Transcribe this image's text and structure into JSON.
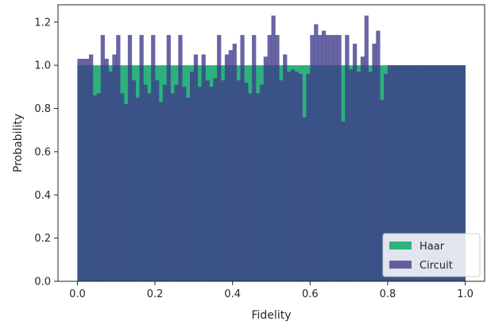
{
  "chart_data": {
    "type": "bar",
    "title": "",
    "xlabel": "Fidelity",
    "ylabel": "Probability",
    "xlim": [
      -0.05,
      1.05
    ],
    "ylim": [
      0,
      1.28
    ],
    "xticks": [
      0.0,
      0.2,
      0.4,
      0.6,
      0.8,
      1.0
    ],
    "xtick_labels": [
      "0.0",
      "0.2",
      "0.4",
      "0.6",
      "0.8",
      "1.0"
    ],
    "yticks": [
      0.0,
      0.2,
      0.4,
      0.6,
      0.8,
      1.0,
      1.2
    ],
    "ytick_labels": [
      "0.0",
      "0.2",
      "0.4",
      "0.6",
      "0.8",
      "1.0",
      "1.2"
    ],
    "bins": 100,
    "bin_range": [
      0,
      1
    ],
    "legend_position": "lower-right",
    "series": [
      {
        "name": "Haar",
        "color": "#2db27d",
        "alpha": 1.0,
        "values": [
          1.0,
          1.0,
          1.0,
          1.0,
          1.0,
          1.0,
          1.0,
          1.0,
          1.0,
          1.0,
          1.0,
          1.0,
          1.0,
          1.0,
          1.0,
          1.0,
          1.0,
          1.0,
          1.0,
          1.0,
          1.0,
          1.0,
          1.0,
          1.0,
          1.0,
          1.0,
          1.0,
          1.0,
          1.0,
          1.0,
          1.0,
          1.0,
          1.0,
          1.0,
          1.0,
          1.0,
          1.0,
          1.0,
          1.0,
          1.0,
          1.0,
          1.0,
          1.0,
          1.0,
          1.0,
          1.0,
          1.0,
          1.0,
          1.0,
          1.0,
          1.0,
          1.0,
          1.0,
          1.0,
          1.0,
          1.0,
          1.0,
          1.0,
          1.0,
          1.0,
          1.0,
          1.0,
          1.0,
          1.0,
          1.0,
          1.0,
          1.0,
          1.0,
          1.0,
          1.0,
          1.0,
          1.0,
          1.0,
          1.0,
          1.0,
          1.0,
          1.0,
          1.0,
          1.0,
          1.0,
          1.0,
          1.0,
          1.0,
          1.0,
          1.0,
          1.0,
          1.0,
          1.0,
          1.0,
          1.0,
          1.0,
          1.0,
          1.0,
          1.0,
          1.0,
          1.0,
          1.0,
          1.0,
          1.0,
          1.0
        ]
      },
      {
        "name": "Circuit",
        "color": "#3e3a8a",
        "alpha": 0.78,
        "values": [
          1.03,
          1.03,
          1.03,
          1.05,
          0.86,
          0.87,
          1.14,
          1.03,
          0.97,
          1.05,
          1.14,
          0.87,
          0.82,
          1.14,
          0.93,
          0.85,
          1.14,
          0.91,
          0.87,
          1.14,
          0.93,
          0.83,
          0.91,
          1.14,
          0.87,
          0.91,
          1.14,
          0.9,
          0.85,
          0.97,
          1.05,
          0.9,
          1.05,
          0.93,
          0.9,
          0.94,
          1.14,
          0.93,
          1.05,
          1.07,
          1.1,
          0.93,
          1.14,
          0.92,
          0.87,
          1.14,
          0.87,
          0.91,
          1.04,
          1.14,
          1.23,
          1.14,
          0.93,
          1.05,
          0.97,
          0.98,
          0.97,
          0.96,
          0.76,
          0.96,
          1.14,
          1.19,
          1.14,
          1.16,
          1.14,
          1.14,
          1.14,
          1.14,
          0.74,
          1.14,
          0.98,
          1.1,
          0.97,
          1.04,
          1.23,
          0.97,
          1.1,
          1.16,
          0.84,
          0.96,
          1.0,
          1.0,
          1.0,
          1.0,
          1.0,
          1.0,
          1.0,
          1.0,
          1.0,
          1.0,
          1.0,
          1.0,
          1.0,
          1.0,
          1.0,
          1.0,
          1.0,
          1.0,
          1.0,
          1.0
        ]
      }
    ]
  }
}
